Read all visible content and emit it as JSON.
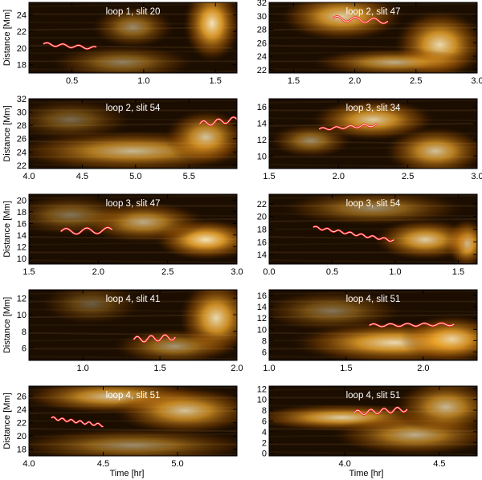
{
  "figure": {
    "ylabel": "Distance [Mm]",
    "xlabel": "Time [hr]"
  },
  "chart_data": [
    {
      "type": "heatmap",
      "title": "loop 1, slit 20",
      "xlim": [
        0.2,
        1.65
      ],
      "ylim": [
        17,
        25.5
      ],
      "xticks": [
        0.5,
        1.0,
        1.5
      ],
      "xticklabels": [
        "0.5",
        "1.0",
        "1.5"
      ],
      "yticks": [
        18,
        20,
        22,
        24
      ],
      "yticklabels": [
        "18",
        "20",
        "22",
        "24"
      ],
      "ylabel": "Distance [Mm]",
      "xlabel": "",
      "fit": {
        "x": [
          0.3,
          0.67
        ],
        "y_center": [
          20.5,
          20.0
        ],
        "amplitude": 0.18,
        "period_hr": 0.11
      }
    },
    {
      "type": "heatmap",
      "title": "loop 2, slit 47",
      "xlim": [
        1.3,
        3.0
      ],
      "ylim": [
        21.5,
        32
      ],
      "xticks": [
        1.5,
        2.0,
        2.5,
        3.0
      ],
      "xticklabels": [
        "1.5",
        "2.0",
        "2.5",
        "3.0"
      ],
      "yticks": [
        22,
        24,
        26,
        28,
        30,
        32
      ],
      "yticklabels": [
        "22",
        "24",
        "26",
        "28",
        "30",
        "32"
      ],
      "ylabel": "",
      "xlabel": "",
      "fit": {
        "x": [
          1.82,
          2.27
        ],
        "y_center": [
          29.6,
          29.2
        ],
        "amplitude": 0.35,
        "period_hr": 0.15
      }
    },
    {
      "type": "heatmap",
      "title": "loop 2, slit 54",
      "xlim": [
        4.0,
        5.95
      ],
      "ylim": [
        21.5,
        32
      ],
      "xticks": [
        4.0,
        4.5,
        5.0,
        5.5
      ],
      "xticklabels": [
        "4.0",
        "4.5",
        "5.0",
        "5.5"
      ],
      "yticks": [
        22,
        24,
        26,
        28,
        30,
        32
      ],
      "yticklabels": [
        "22",
        "24",
        "26",
        "28",
        "30",
        "32"
      ],
      "ylabel": "Distance [Mm]",
      "xlabel": "",
      "fit": {
        "x": [
          5.6,
          5.95
        ],
        "y_center": [
          28.2,
          28.9
        ],
        "amplitude": 0.4,
        "period_hr": 0.14
      }
    },
    {
      "type": "heatmap",
      "title": "loop 3, slit 34",
      "xlim": [
        1.5,
        3.0
      ],
      "ylim": [
        8.5,
        17
      ],
      "xticks": [
        1.5,
        2.0,
        2.5,
        3.0
      ],
      "xticklabels": [
        "1.5",
        "2.0",
        "2.5",
        "3.0"
      ],
      "yticks": [
        10,
        12,
        14,
        16
      ],
      "yticklabels": [
        "10",
        "12",
        "14",
        "16"
      ],
      "ylabel": "",
      "xlabel": "",
      "fit": {
        "x": [
          1.86,
          2.28
        ],
        "y_center": [
          13.3,
          13.8
        ],
        "amplitude": 0.15,
        "period_hr": 0.1
      }
    },
    {
      "type": "heatmap",
      "title": "loop 3, slit 47",
      "xlim": [
        1.5,
        3.0
      ],
      "ylim": [
        9,
        21
      ],
      "xticks": [
        1.5,
        2.0,
        2.5,
        3.0
      ],
      "xticklabels": [
        "1.5",
        "2.0",
        "2.5",
        "3.0"
      ],
      "yticks": [
        10,
        12,
        14,
        16,
        18,
        20
      ],
      "yticklabels": [
        "10",
        "12",
        "14",
        "16",
        "18",
        "20"
      ],
      "ylabel": "Distance [Mm]",
      "xlabel": "",
      "fit": {
        "x": [
          1.73,
          2.1
        ],
        "y_center": [
          14.6,
          14.8
        ],
        "amplitude": 0.5,
        "period_hr": 0.15
      }
    },
    {
      "type": "heatmap",
      "title": "loop 3, slit 54",
      "xlim": [
        0.0,
        1.65
      ],
      "ylim": [
        12.5,
        23.5
      ],
      "xticks": [
        0.0,
        0.5,
        1.0,
        1.5
      ],
      "xticklabels": [
        "0.0",
        "0.5",
        "1.0",
        "1.5"
      ],
      "yticks": [
        14,
        16,
        18,
        20,
        22
      ],
      "yticklabels": [
        "14",
        "16",
        "18",
        "20",
        "22"
      ],
      "ylabel": "",
      "xlabel": "",
      "fit": {
        "x": [
          0.35,
          0.99
        ],
        "y_center": [
          18.3,
          16.2
        ],
        "amplitude": 0.2,
        "period_hr": 0.09
      }
    },
    {
      "type": "heatmap",
      "title": "loop 4, slit 41",
      "xlim": [
        0.65,
        2.0
      ],
      "ylim": [
        4.5,
        13
      ],
      "xticks": [
        1.0,
        1.5,
        2.0
      ],
      "xticklabels": [
        "1.0",
        "1.5",
        "2.0"
      ],
      "yticks": [
        6,
        8,
        10,
        12
      ],
      "yticklabels": [
        "6",
        "8",
        "10",
        "12"
      ],
      "ylabel": "Distance [Mm]",
      "xlabel": "",
      "fit": {
        "x": [
          1.33,
          1.6
        ],
        "y_center": [
          7.0,
          7.3
        ],
        "amplitude": 0.35,
        "period_hr": 0.09
      }
    },
    {
      "type": "heatmap",
      "title": "loop 4, slit 51",
      "xlim": [
        1.0,
        2.35
      ],
      "ylim": [
        4.5,
        17
      ],
      "xticks": [
        1.0,
        1.5,
        2.0
      ],
      "xticklabels": [
        "1.0",
        "1.5",
        "2.0"
      ],
      "yticks": [
        6,
        8,
        10,
        12,
        14,
        16
      ],
      "yticklabels": [
        "6",
        "8",
        "10",
        "12",
        "14",
        "16"
      ],
      "ylabel": "",
      "xlabel": "",
      "fit": {
        "x": [
          1.65,
          2.2
        ],
        "y_center": [
          10.7,
          10.9
        ],
        "amplitude": 0.25,
        "period_hr": 0.11
      }
    },
    {
      "type": "heatmap",
      "title": "loop 4, slit 51",
      "xlim": [
        4.0,
        5.4
      ],
      "ylim": [
        17,
        27.5
      ],
      "xticks": [
        4.0,
        4.5,
        5.0
      ],
      "xticklabels": [
        "4.0",
        "4.5",
        "5.0"
      ],
      "yticks": [
        18,
        20,
        22,
        24,
        26
      ],
      "yticklabels": [
        "18",
        "20",
        "22",
        "24",
        "26"
      ],
      "ylabel": "Distance [Mm]",
      "xlabel": "Time [hr]",
      "fit": {
        "x": [
          4.15,
          4.5
        ],
        "y_center": [
          22.7,
          21.6
        ],
        "amplitude": 0.2,
        "period_hr": 0.06
      }
    },
    {
      "type": "heatmap",
      "title": "loop 4, slit 51",
      "xlim": [
        3.6,
        4.7
      ],
      "ylim": [
        -0.5,
        12.5
      ],
      "xticks": [
        4.0,
        4.5
      ],
      "xticklabels": [
        "4.0",
        "4.5"
      ],
      "yticks": [
        0,
        2,
        4,
        6,
        8,
        10,
        12
      ],
      "yticklabels": [
        "0",
        "2",
        "4",
        "6",
        "8",
        "10",
        "12"
      ],
      "ylabel": "",
      "xlabel": "Time [hr]",
      "fit": {
        "x": [
          4.05,
          4.33
        ],
        "y_center": [
          7.5,
          8.2
        ],
        "amplitude": 0.45,
        "period_hr": 0.07
      }
    }
  ]
}
